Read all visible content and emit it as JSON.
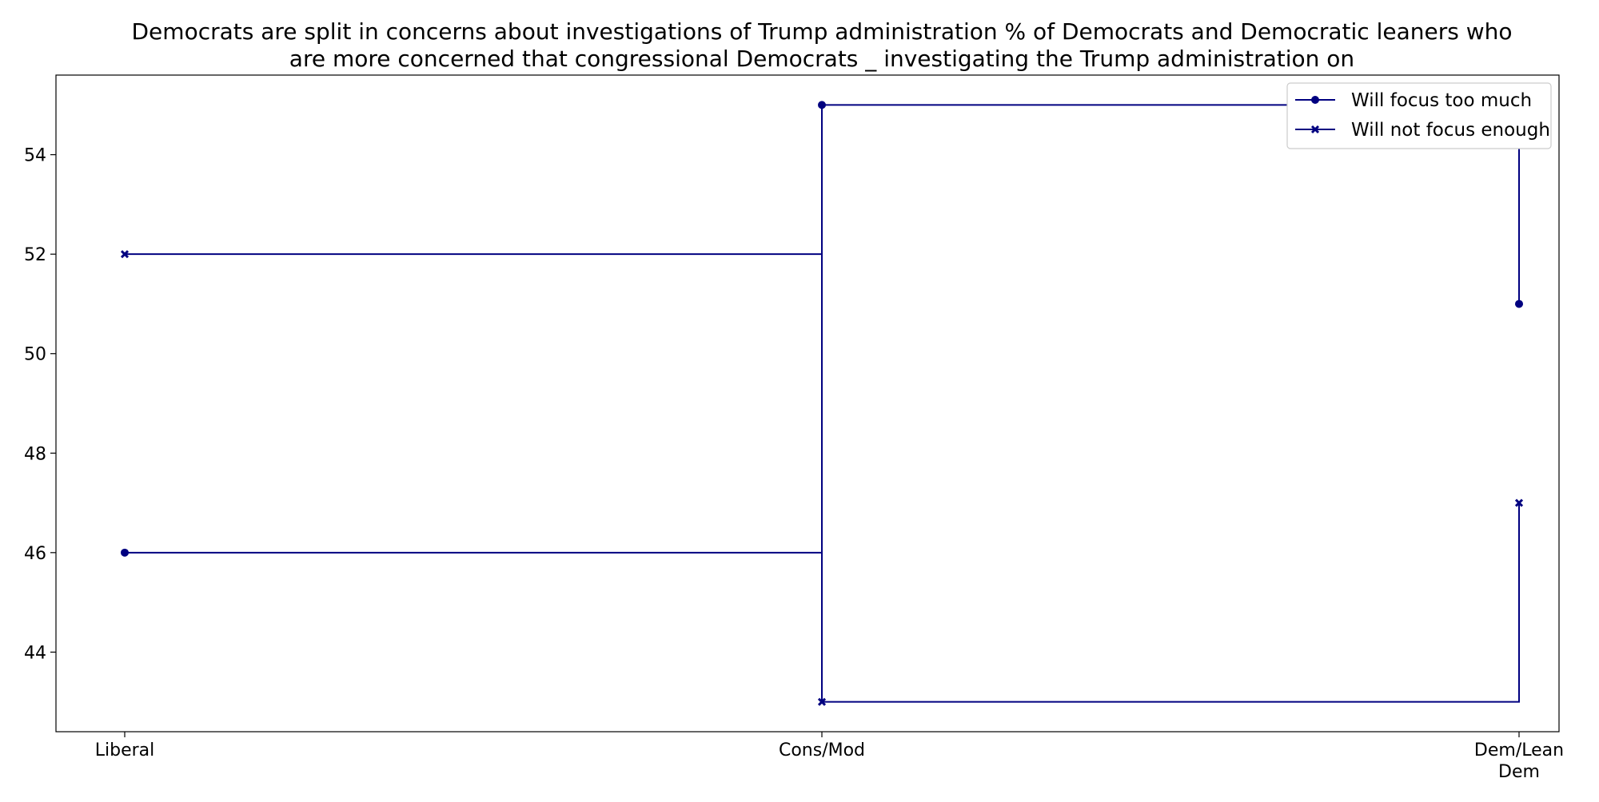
{
  "chart_data": {
    "type": "line",
    "step": "post",
    "title_lines": [
      "Democrats are split in concerns about investigations of Trump administration % of Democrats and Democratic leaners who",
      "are more concerned that congressional Democrats _ investigating the Trump administration on"
    ],
    "xlabel": "",
    "ylabel": "",
    "categories": [
      "Liberal",
      "Cons/Mod",
      "Dem/Lean\nDem"
    ],
    "yticks": [
      44,
      46,
      48,
      50,
      52,
      54
    ],
    "ylim": [
      42.4,
      55.6
    ],
    "grid": false,
    "legend": {
      "placement": "top-right"
    },
    "series": [
      {
        "name": "Will focus too much",
        "marker": "circle",
        "color": "#000080",
        "values": [
          46,
          55,
          51
        ]
      },
      {
        "name": "Will not focus enough",
        "marker": "x",
        "color": "#000080",
        "values": [
          52,
          43,
          47
        ]
      }
    ]
  }
}
